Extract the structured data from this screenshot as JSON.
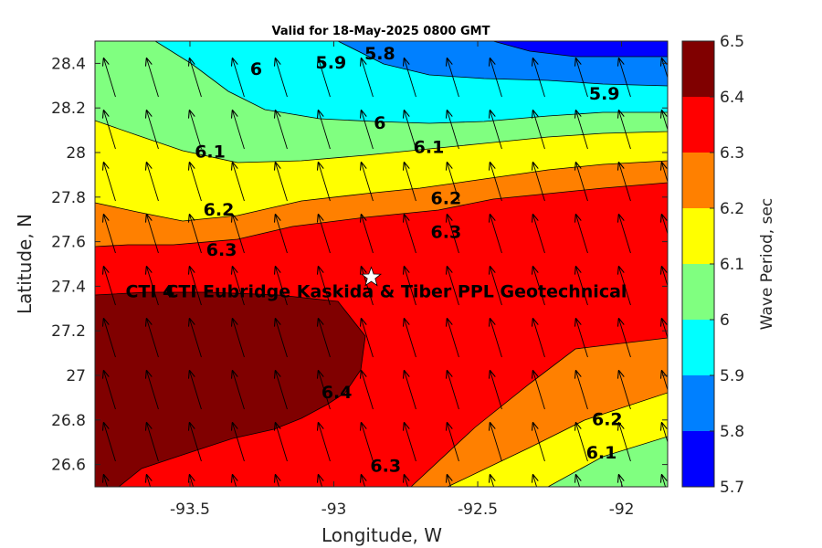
{
  "chart_data": {
    "type": "contour",
    "title": "Valid for 18-May-2025 0800 GMT",
    "xlabel": "Longitude, W",
    "ylabel": "Latitude, N",
    "xlim": [
      -93.83,
      -91.84
    ],
    "ylim": [
      26.5,
      28.5
    ],
    "xticks": [
      -93.5,
      -93,
      -92.5,
      -92
    ],
    "xtick_labels": [
      "-93.5",
      "-93",
      "-92.5",
      "-92"
    ],
    "yticks": [
      26.6,
      26.8,
      27.0,
      27.2,
      27.4,
      27.6,
      27.8,
      28.0,
      28.2,
      28.4
    ],
    "ytick_labels": [
      "26.6",
      "26.8",
      "27",
      "27.2",
      "27.4",
      "27.6",
      "27.8",
      "28",
      "28.2",
      "28.4"
    ],
    "colorbar": {
      "label": "Wave Period, sec",
      "ticks": [
        5.7,
        5.8,
        5.9,
        6.0,
        6.1,
        6.2,
        6.3,
        6.4,
        6.5
      ],
      "tick_labels": [
        "5.7",
        "5.8",
        "5.9",
        "6",
        "6.1",
        "6.2",
        "6.3",
        "6.4",
        "6.5"
      ],
      "bands": [
        {
          "min": 5.7,
          "max": 5.8,
          "color": "#0000ff"
        },
        {
          "min": 5.8,
          "max": 5.9,
          "color": "#0080ff"
        },
        {
          "min": 5.9,
          "max": 6.0,
          "color": "#00ffff"
        },
        {
          "min": 6.0,
          "max": 6.1,
          "color": "#80ff80"
        },
        {
          "min": 6.1,
          "max": 6.2,
          "color": "#ffff00"
        },
        {
          "min": 6.2,
          "max": 6.3,
          "color": "#ff8000"
        },
        {
          "min": 6.3,
          "max": 6.4,
          "color": "#ff0000"
        },
        {
          "min": 6.4,
          "max": 6.5,
          "color": "#800000"
        }
      ]
    },
    "contour_labels": [
      {
        "text": "5.8",
        "lon": -92.84,
        "lat": 28.44
      },
      {
        "text": "5.9",
        "lon": -93.01,
        "lat": 28.4
      },
      {
        "text": "5.9",
        "lon": -92.06,
        "lat": 28.26
      },
      {
        "text": "6",
        "lon": -93.27,
        "lat": 28.37
      },
      {
        "text": "6",
        "lon": -92.84,
        "lat": 28.13
      },
      {
        "text": "6.1",
        "lon": -93.43,
        "lat": 28.0
      },
      {
        "text": "6.1",
        "lon": -92.67,
        "lat": 28.02
      },
      {
        "text": "6.1",
        "lon": -92.07,
        "lat": 26.65
      },
      {
        "text": "6.2",
        "lon": -93.4,
        "lat": 27.74
      },
      {
        "text": "6.2",
        "lon": -92.61,
        "lat": 27.79
      },
      {
        "text": "6.2",
        "lon": -92.05,
        "lat": 26.8
      },
      {
        "text": "6.3",
        "lon": -93.39,
        "lat": 27.56
      },
      {
        "text": "6.3",
        "lon": -92.61,
        "lat": 27.64
      },
      {
        "text": "6.3",
        "lon": -92.82,
        "lat": 26.59
      },
      {
        "text": "6.4",
        "lon": -92.99,
        "lat": 26.92
      }
    ],
    "site": {
      "label": "CTI Eubridge  Kaskida & Tiber PPL Geotechnical",
      "lon": -92.87,
      "lat": 27.44
    },
    "site_overlap_text": "CTI 4",
    "wave_direction_vectors": {
      "description": "uniform field of arrows pointing north-north-west",
      "direction_deg_from_north": -17
    }
  }
}
